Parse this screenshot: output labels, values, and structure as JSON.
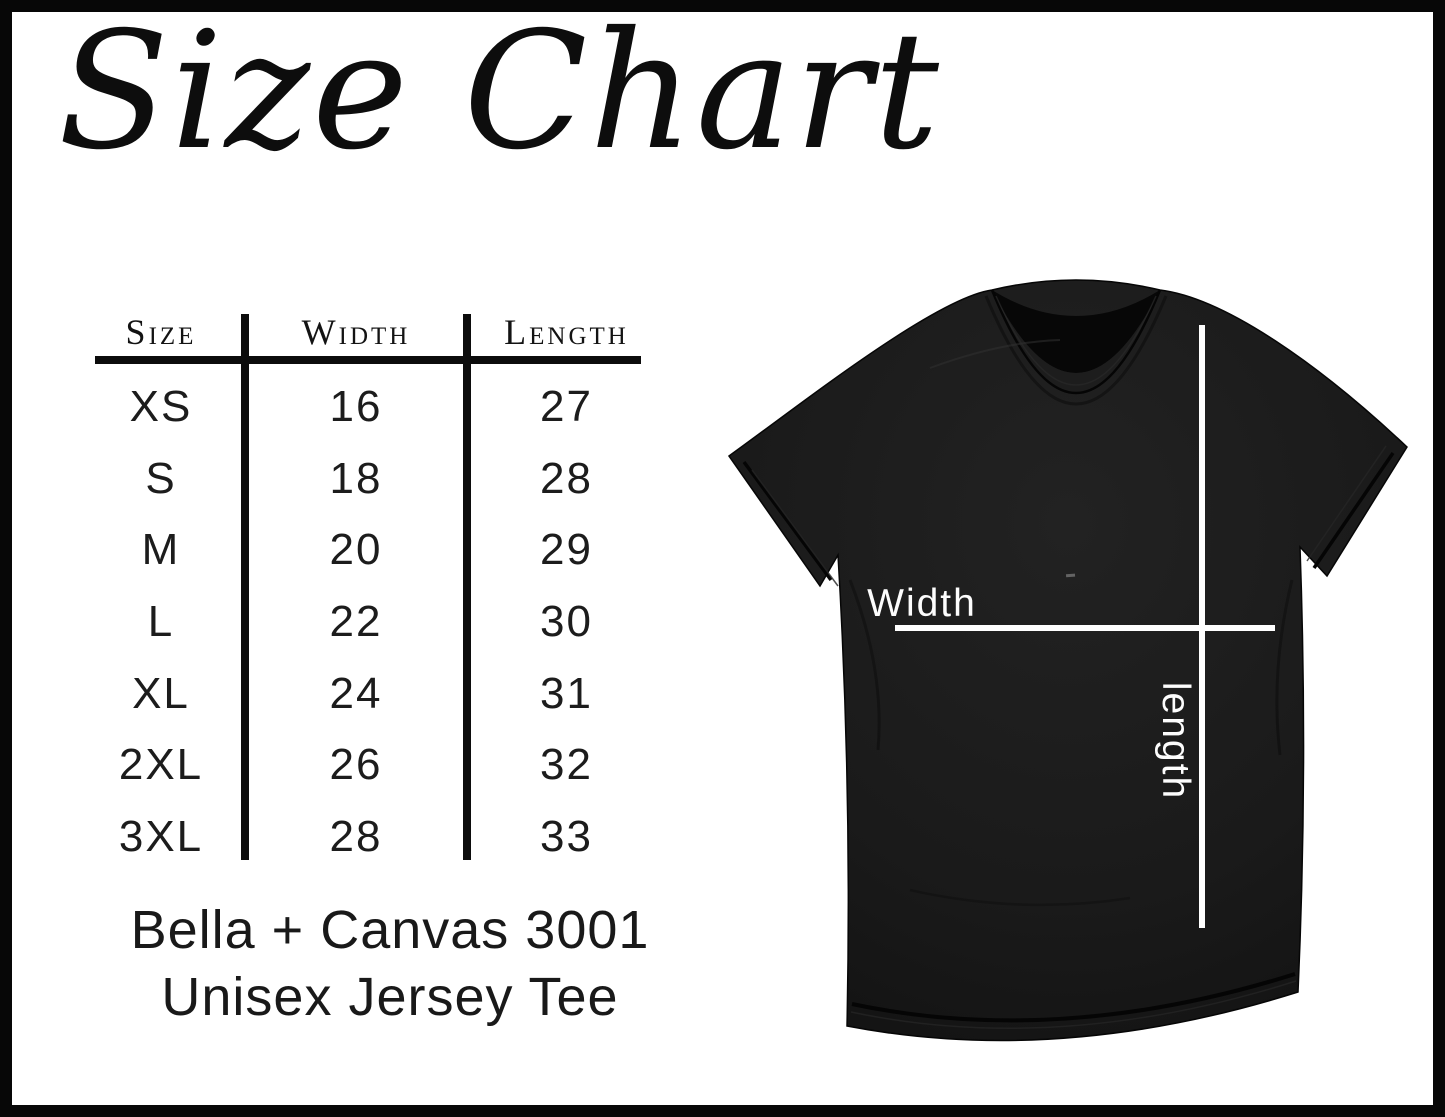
{
  "title": "Size Chart",
  "chart_data": {
    "type": "table",
    "title": "Size Chart",
    "columns": [
      "Size",
      "Width",
      "Length"
    ],
    "rows": [
      [
        "XS",
        "16",
        "27"
      ],
      [
        "S",
        "18",
        "28"
      ],
      [
        "M",
        "20",
        "29"
      ],
      [
        "L",
        "22",
        "30"
      ],
      [
        "XL",
        "24",
        "31"
      ],
      [
        "2XL",
        "26",
        "32"
      ],
      [
        "3XL",
        "28",
        "33"
      ]
    ],
    "caption": "Bella + Canvas 3001 Unisex Jersey Tee"
  },
  "caption": {
    "line1": "Bella + Canvas 3001",
    "line2": "Unisex Jersey Tee"
  },
  "shirt": {
    "width_label": "Width",
    "length_label": "length",
    "shirt_color": "#1a1a1a",
    "line_color": "#ffffff"
  },
  "colors": {
    "background": "#ffffff",
    "frame": "#070707",
    "ink": "#0c0c0c"
  }
}
